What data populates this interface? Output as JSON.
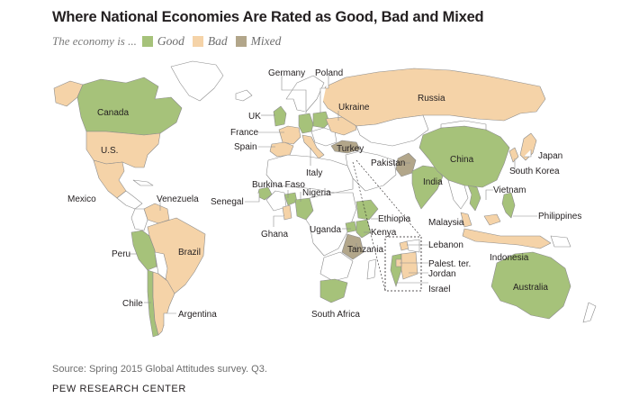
{
  "title": "Where National Economies Are Rated as Good, Bad and Mixed",
  "legend": {
    "intro": "The economy is ...",
    "items": [
      {
        "label": "Good",
        "color": "#a6c27a"
      },
      {
        "label": "Bad",
        "color": "#f5d3a8"
      },
      {
        "label": "Mixed",
        "color": "#b2a68a"
      }
    ]
  },
  "colors": {
    "good": "#a6c27a",
    "bad": "#f5d3a8",
    "mixed": "#b2a68a",
    "no_data": "#ffffff",
    "border": "#8c8c8c",
    "leader": "#231f20"
  },
  "countries": {
    "canada": {
      "label": "Canada",
      "rating": "good"
    },
    "us": {
      "label": "U.S.",
      "rating": "bad"
    },
    "mexico": {
      "label": "Mexico",
      "rating": "bad"
    },
    "venezuela": {
      "label": "Venezuela",
      "rating": "bad"
    },
    "peru": {
      "label": "Peru",
      "rating": "good"
    },
    "brazil": {
      "label": "Brazil",
      "rating": "bad"
    },
    "chile": {
      "label": "Chile",
      "rating": "good"
    },
    "argentina": {
      "label": "Argentina",
      "rating": "bad"
    },
    "uk": {
      "label": "UK",
      "rating": "good"
    },
    "france": {
      "label": "France",
      "rating": "bad"
    },
    "spain": {
      "label": "Spain",
      "rating": "bad"
    },
    "germany": {
      "label": "Germany",
      "rating": "good"
    },
    "poland": {
      "label": "Poland",
      "rating": "good"
    },
    "ukraine": {
      "label": "Ukraine",
      "rating": "bad"
    },
    "russia": {
      "label": "Russia",
      "rating": "bad"
    },
    "italy": {
      "label": "Italy",
      "rating": "bad"
    },
    "turkey": {
      "label": "Turkey",
      "rating": "mixed"
    },
    "burkina_faso": {
      "label": "Burkina Faso",
      "rating": "good"
    },
    "senegal": {
      "label": "Senegal",
      "rating": "good"
    },
    "nigeria": {
      "label": "Nigeria",
      "rating": "good"
    },
    "ghana": {
      "label": "Ghana",
      "rating": "bad"
    },
    "ethiopia": {
      "label": "Ethiopia",
      "rating": "good"
    },
    "uganda": {
      "label": "Uganda",
      "rating": "good"
    },
    "kenya": {
      "label": "Kenya",
      "rating": "good"
    },
    "tanzania": {
      "label": "Tanzania",
      "rating": "mixed"
    },
    "south_africa": {
      "label": "South Africa",
      "rating": "good"
    },
    "lebanon": {
      "label": "Lebanon",
      "rating": "bad"
    },
    "palestinian_territories": {
      "label": "Palest. ter.",
      "rating": "bad"
    },
    "jordan": {
      "label": "Jordan",
      "rating": "bad"
    },
    "israel": {
      "label": "Israel",
      "rating": "good"
    },
    "pakistan": {
      "label": "Pakistan",
      "rating": "mixed"
    },
    "india": {
      "label": "India",
      "rating": "good"
    },
    "china": {
      "label": "China",
      "rating": "good"
    },
    "japan": {
      "label": "Japan",
      "rating": "bad"
    },
    "south_korea": {
      "label": "South Korea",
      "rating": "bad"
    },
    "vietnam": {
      "label": "Vietnam",
      "rating": "good"
    },
    "malaysia": {
      "label": "Malaysia",
      "rating": "bad"
    },
    "philippines": {
      "label": "Philippines",
      "rating": "good"
    },
    "indonesia": {
      "label": "Indonesia",
      "rating": "bad"
    },
    "australia": {
      "label": "Australia",
      "rating": "good"
    }
  },
  "footer": {
    "source": "Source: Spring 2015 Global Attitudes survey. Q3.",
    "org": "PEW RESEARCH CENTER"
  }
}
